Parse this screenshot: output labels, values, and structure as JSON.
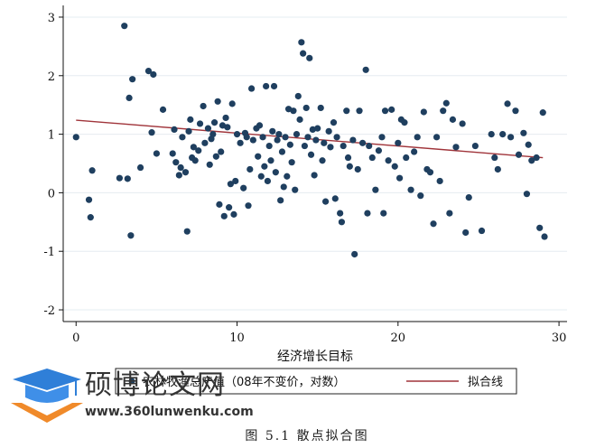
{
  "chart_data": {
    "type": "scatter",
    "xlabel": "经济增长目标",
    "ylabel": "",
    "xlim": [
      -0.8,
      30.5
    ],
    "ylim": [
      -2.2,
      3.2
    ],
    "xticks": [
      0,
      10,
      20,
      30
    ],
    "yticks": [
      -2,
      -1,
      0,
      1,
      2,
      3
    ],
    "grid": true,
    "legend_position": "bottom",
    "marker_color": "#1f3f5f",
    "line_color": "#a0343a",
    "series": [
      {
        "name": "农林牧渔总产值（08年不变价，对数）",
        "kind": "scatter",
        "points": [
          [
            0.0,
            0.95
          ],
          [
            0.8,
            -0.12
          ],
          [
            0.9,
            -0.42
          ],
          [
            1.0,
            0.38
          ],
          [
            2.7,
            0.25
          ],
          [
            3.0,
            2.85
          ],
          [
            3.2,
            0.24
          ],
          [
            3.3,
            1.62
          ],
          [
            3.4,
            -0.73
          ],
          [
            3.5,
            1.94
          ],
          [
            4.0,
            0.43
          ],
          [
            4.5,
            2.08
          ],
          [
            4.7,
            1.03
          ],
          [
            4.8,
            2.02
          ],
          [
            5.0,
            0.67
          ],
          [
            5.4,
            1.42
          ],
          [
            6.0,
            0.67
          ],
          [
            6.1,
            1.08
          ],
          [
            6.2,
            0.52
          ],
          [
            6.4,
            0.3
          ],
          [
            6.5,
            0.43
          ],
          [
            6.6,
            0.95
          ],
          [
            6.8,
            0.35
          ],
          [
            6.9,
            -0.66
          ],
          [
            7.0,
            1.05
          ],
          [
            7.1,
            1.25
          ],
          [
            7.2,
            0.6
          ],
          [
            7.3,
            0.78
          ],
          [
            7.4,
            0.55
          ],
          [
            7.6,
            0.72
          ],
          [
            7.7,
            1.18
          ],
          [
            7.9,
            1.48
          ],
          [
            8.0,
            0.85
          ],
          [
            8.2,
            1.1
          ],
          [
            8.3,
            0.48
          ],
          [
            8.4,
            0.92
          ],
          [
            8.5,
            1.0
          ],
          [
            8.6,
            1.2
          ],
          [
            8.7,
            0.62
          ],
          [
            8.8,
            1.56
          ],
          [
            8.9,
            -0.2
          ],
          [
            9.0,
            0.7
          ],
          [
            9.1,
            1.15
          ],
          [
            9.2,
            -0.4
          ],
          [
            9.3,
            1.28
          ],
          [
            9.4,
            1.12
          ],
          [
            9.5,
            -0.25
          ],
          [
            9.6,
            0.15
          ],
          [
            9.7,
            1.52
          ],
          [
            9.8,
            -0.37
          ],
          [
            9.9,
            0.2
          ],
          [
            10.0,
            1.0
          ],
          [
            10.2,
            0.85
          ],
          [
            10.4,
            0.08
          ],
          [
            10.5,
            1.02
          ],
          [
            10.6,
            0.95
          ],
          [
            10.7,
            -0.22
          ],
          [
            10.8,
            0.4
          ],
          [
            10.9,
            1.78
          ],
          [
            11.0,
            0.9
          ],
          [
            11.2,
            1.1
          ],
          [
            11.3,
            0.62
          ],
          [
            11.4,
            1.15
          ],
          [
            11.5,
            0.28
          ],
          [
            11.6,
            0.95
          ],
          [
            11.7,
            0.45
          ],
          [
            11.8,
            1.82
          ],
          [
            11.9,
            0.2
          ],
          [
            12.0,
            0.8
          ],
          [
            12.1,
            0.55
          ],
          [
            12.2,
            1.05
          ],
          [
            12.3,
            1.82
          ],
          [
            12.4,
            0.35
          ],
          [
            12.5,
            0.9
          ],
          [
            12.6,
            1.0
          ],
          [
            12.7,
            -0.13
          ],
          [
            12.8,
            0.7
          ],
          [
            12.9,
            0.1
          ],
          [
            13.0,
            0.95
          ],
          [
            13.1,
            0.28
          ],
          [
            13.2,
            1.43
          ],
          [
            13.3,
            0.82
          ],
          [
            13.4,
            0.52
          ],
          [
            13.5,
            1.4
          ],
          [
            13.6,
            0.05
          ],
          [
            13.7,
            1.0
          ],
          [
            13.8,
            1.65
          ],
          [
            13.9,
            1.25
          ],
          [
            14.0,
            2.57
          ],
          [
            14.1,
            2.38
          ],
          [
            14.2,
            0.8
          ],
          [
            14.3,
            1.45
          ],
          [
            14.4,
            0.95
          ],
          [
            14.5,
            2.3
          ],
          [
            14.6,
            0.65
          ],
          [
            14.7,
            1.08
          ],
          [
            14.8,
            0.3
          ],
          [
            14.9,
            0.9
          ],
          [
            15.0,
            1.1
          ],
          [
            15.2,
            1.45
          ],
          [
            15.3,
            0.55
          ],
          [
            15.4,
            0.85
          ],
          [
            15.5,
            -0.15
          ],
          [
            15.7,
            1.05
          ],
          [
            15.8,
            0.78
          ],
          [
            16.0,
            1.2
          ],
          [
            16.1,
            -0.1
          ],
          [
            16.2,
            0.95
          ],
          [
            16.4,
            -0.35
          ],
          [
            16.5,
            -0.5
          ],
          [
            16.6,
            0.8
          ],
          [
            16.8,
            1.4
          ],
          [
            16.9,
            0.6
          ],
          [
            17.0,
            0.45
          ],
          [
            17.2,
            0.9
          ],
          [
            17.3,
            -1.05
          ],
          [
            17.5,
            0.4
          ],
          [
            17.6,
            1.4
          ],
          [
            17.8,
            0.85
          ],
          [
            18.0,
            2.1
          ],
          [
            18.1,
            -0.35
          ],
          [
            18.2,
            0.8
          ],
          [
            18.4,
            0.6
          ],
          [
            18.6,
            0.05
          ],
          [
            18.8,
            0.72
          ],
          [
            19.0,
            0.95
          ],
          [
            19.1,
            -0.35
          ],
          [
            19.2,
            1.4
          ],
          [
            19.4,
            0.55
          ],
          [
            19.6,
            1.42
          ],
          [
            19.8,
            0.45
          ],
          [
            20.0,
            0.85
          ],
          [
            20.1,
            0.25
          ],
          [
            20.2,
            1.25
          ],
          [
            20.4,
            1.2
          ],
          [
            20.5,
            0.6
          ],
          [
            20.8,
            0.05
          ],
          [
            21.0,
            0.7
          ],
          [
            21.2,
            0.95
          ],
          [
            21.4,
            -0.05
          ],
          [
            21.6,
            1.38
          ],
          [
            21.8,
            0.4
          ],
          [
            22.0,
            0.35
          ],
          [
            22.2,
            -0.53
          ],
          [
            22.4,
            0.95
          ],
          [
            22.6,
            0.2
          ],
          [
            22.8,
            1.4
          ],
          [
            23.0,
            1.53
          ],
          [
            23.2,
            -0.35
          ],
          [
            23.4,
            1.25
          ],
          [
            23.6,
            0.78
          ],
          [
            24.0,
            1.18
          ],
          [
            24.2,
            -0.68
          ],
          [
            24.4,
            -0.08
          ],
          [
            24.8,
            0.8
          ],
          [
            25.2,
            -0.65
          ],
          [
            25.8,
            1.0
          ],
          [
            26.0,
            0.6
          ],
          [
            26.2,
            0.4
          ],
          [
            26.5,
            1.0
          ],
          [
            26.8,
            1.52
          ],
          [
            27.0,
            0.95
          ],
          [
            27.3,
            1.4
          ],
          [
            27.5,
            0.65
          ],
          [
            27.8,
            1.02
          ],
          [
            28.0,
            -0.02
          ],
          [
            28.1,
            0.82
          ],
          [
            28.3,
            0.55
          ],
          [
            28.6,
            0.6
          ],
          [
            28.8,
            -0.6
          ],
          [
            29.0,
            1.37
          ],
          [
            29.1,
            -0.75
          ]
        ]
      },
      {
        "name": "拟合线",
        "kind": "line",
        "points": [
          [
            0.0,
            1.24
          ],
          [
            29.0,
            0.6
          ]
        ]
      }
    ]
  },
  "caption": "图  5.1  散点拟合图",
  "watermark": {
    "name": "硕博论文网",
    "url": "www.360lunwenku.com",
    "icon": "graduation-cap-icon"
  }
}
